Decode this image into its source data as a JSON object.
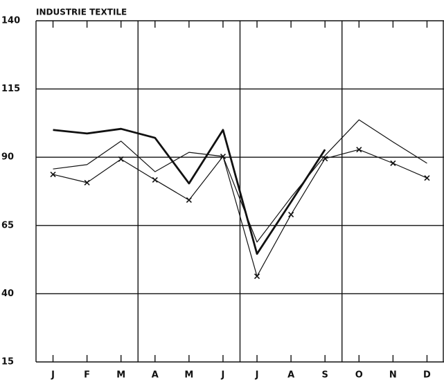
{
  "chart_data": {
    "type": "line",
    "title": "INDUSTRIE TEXTILE",
    "categories": [
      "J",
      "F",
      "M",
      "A",
      "M",
      "J",
      "J",
      "A",
      "S",
      "O",
      "N",
      "D"
    ],
    "ylim": [
      15,
      140
    ],
    "yticks": [
      15,
      40,
      65,
      90,
      115,
      140
    ],
    "grid": true,
    "series": [
      {
        "color": "#111111",
        "width": 2.8,
        "marker": "none",
        "values": [
          100,
          98.7,
          100.4,
          97.1,
          80.4,
          100,
          54.6,
          73.6,
          92.8,
          null,
          null,
          null
        ]
      },
      {
        "color": "#111111",
        "width": 1.2,
        "marker": "none",
        "values": [
          85.7,
          87.3,
          95.9,
          84.7,
          91.8,
          90.3,
          58.9,
          75.3,
          90.6,
          103.7,
          95.6,
          87.8
        ]
      },
      {
        "color": "#111111",
        "width": 1.2,
        "marker": "x",
        "values": [
          83.7,
          80.7,
          89.3,
          81.7,
          74.3,
          90.3,
          46.4,
          69,
          89.5,
          92.8,
          87.8,
          82.4
        ]
      }
    ]
  }
}
